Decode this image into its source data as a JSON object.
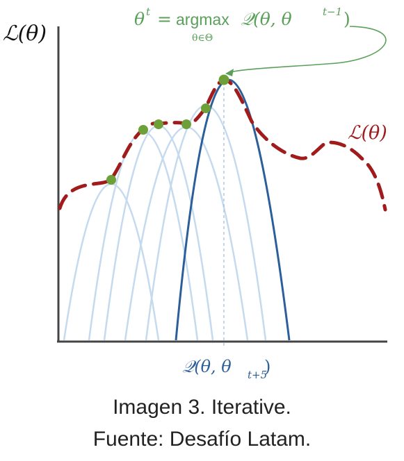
{
  "diagram": {
    "y_axis_label": "ℒ(θ)",
    "curve_label": "ℒ(θ)",
    "update_rule": {
      "lhs": "θ",
      "lhs_sup": "t",
      "eq": "=",
      "op": "argmax",
      "op_sub": "θ∈Θ",
      "func": "𝒬(θ, θ",
      "func_sup": "t−1",
      "close": ")"
    },
    "current_bound_label": {
      "main": "𝒬(θ, θ",
      "sub": "t+5",
      "close": ")"
    },
    "colors": {
      "likelihood": "#a01c1c",
      "bound_past": "#c5daee",
      "bound_current": "#2c5f9a",
      "point": "#6ea03a",
      "annotation": "#5aa05a",
      "axis": "#444444",
      "guide": "#9fb8d6"
    }
  },
  "caption": {
    "line1": "Imagen 3. Iterative.",
    "line2": "Fuente: Desafío Latam."
  }
}
